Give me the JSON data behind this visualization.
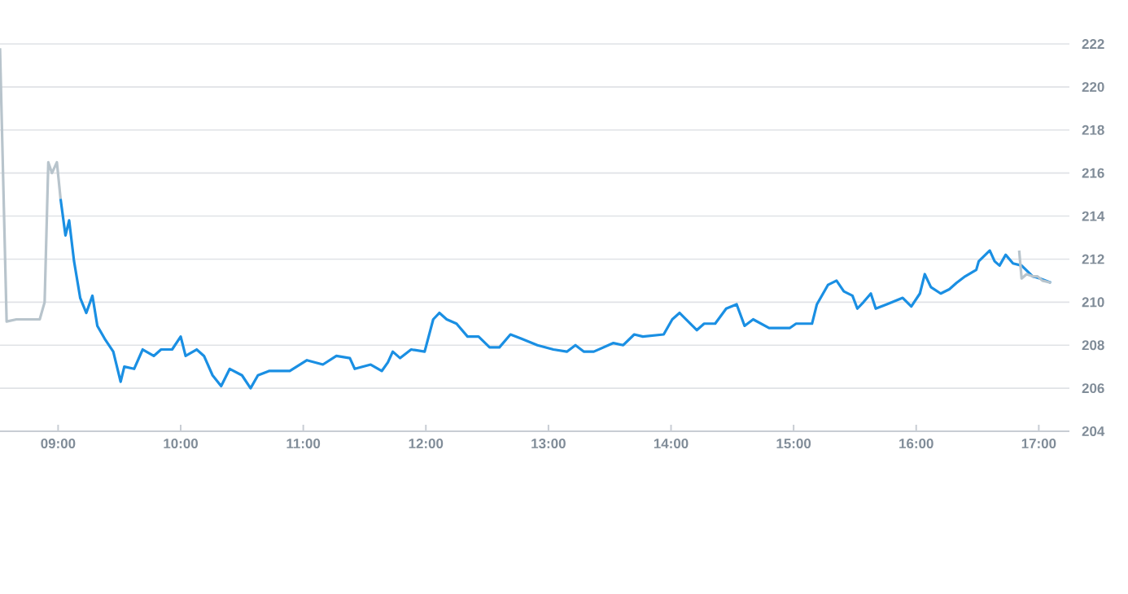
{
  "chart_data": {
    "type": "line",
    "series": [
      {
        "color": "#b8c4cc",
        "x": [
          8.526,
          8.58,
          8.66,
          8.85,
          8.89,
          8.92,
          8.95,
          8.99,
          9.02
        ],
        "values": [
          221.8,
          209.1,
          209.2,
          209.2,
          210.0,
          216.5,
          216.0,
          216.5,
          214.8
        ]
      },
      {
        "color": "#1a8fe3",
        "x": [
          9.02,
          9.06,
          9.09,
          9.13,
          9.18,
          9.23,
          9.28,
          9.32,
          9.38,
          9.45,
          9.51,
          9.54,
          9.62,
          9.69,
          9.78,
          9.84,
          9.93,
          10.0,
          10.04,
          10.13,
          10.19,
          10.26,
          10.33,
          10.4,
          10.5,
          10.57,
          10.63,
          10.72,
          10.89,
          11.03,
          11.16,
          11.27,
          11.38,
          11.42,
          11.55,
          11.64,
          11.69,
          11.73,
          11.79,
          11.88,
          11.99,
          12.06,
          12.11,
          12.17,
          12.25,
          12.34,
          12.43,
          12.52,
          12.6,
          12.69,
          12.78,
          12.91,
          13.04,
          13.15,
          13.22,
          13.29,
          13.37,
          13.53,
          13.61,
          13.7,
          13.77,
          13.94,
          14.01,
          14.07,
          14.21,
          14.27,
          14.36,
          14.45,
          14.535,
          14.6,
          14.67,
          14.8,
          14.97,
          15.02,
          15.15,
          15.19,
          15.28,
          15.35,
          15.41,
          15.48,
          15.52,
          15.57,
          15.63,
          15.67,
          15.76,
          15.89,
          15.96,
          16.03,
          16.07,
          16.12,
          16.2,
          16.27,
          16.33,
          16.4,
          16.49,
          16.51,
          16.6,
          16.64,
          16.68,
          16.73,
          16.79,
          16.86,
          16.95,
          17.01,
          17.1
        ],
        "values": [
          214.8,
          213.1,
          213.8,
          211.9,
          210.2,
          209.5,
          210.3,
          208.9,
          208.3,
          207.7,
          206.3,
          207.0,
          206.9,
          207.8,
          207.5,
          207.8,
          207.8,
          208.4,
          207.5,
          207.8,
          207.5,
          206.6,
          206.1,
          206.9,
          206.6,
          206.0,
          206.6,
          206.8,
          206.8,
          207.3,
          207.1,
          207.5,
          207.4,
          206.9,
          207.1,
          206.8,
          207.2,
          207.7,
          207.4,
          207.8,
          207.7,
          209.2,
          209.5,
          209.2,
          209.0,
          208.4,
          208.4,
          207.9,
          207.9,
          208.5,
          208.3,
          208.0,
          207.8,
          207.7,
          208.0,
          207.7,
          207.7,
          208.1,
          208.0,
          208.5,
          208.4,
          208.5,
          209.2,
          209.5,
          208.7,
          209.0,
          209.0,
          209.7,
          209.9,
          208.9,
          209.2,
          208.8,
          208.8,
          209.0,
          209.0,
          209.9,
          210.8,
          211.0,
          210.5,
          210.3,
          209.7,
          210.0,
          210.4,
          209.7,
          209.9,
          210.2,
          209.8,
          210.4,
          211.3,
          210.7,
          210.4,
          210.6,
          210.9,
          211.2,
          211.5,
          211.9,
          212.4,
          211.9,
          211.7,
          212.2,
          211.8,
          211.7,
          211.2,
          211.1,
          210.9
        ]
      },
      {
        "color": "#b8c4cc",
        "x": [
          16.84,
          16.86,
          16.9,
          16.95,
          16.99,
          17.03,
          17.1
        ],
        "values": [
          212.4,
          211.1,
          211.3,
          211.2,
          211.2,
          211.0,
          210.9
        ]
      }
    ],
    "xlim": [
      8.526,
      17.25
    ],
    "xticks": [
      {
        "value": 9,
        "label": "09:00"
      },
      {
        "value": 10,
        "label": "10:00"
      },
      {
        "value": 11,
        "label": "11:00"
      },
      {
        "value": 12,
        "label": "12:00"
      },
      {
        "value": 13,
        "label": "13:00"
      },
      {
        "value": 14,
        "label": "14:00"
      },
      {
        "value": 15,
        "label": "15:00"
      },
      {
        "value": 16,
        "label": "16:00"
      },
      {
        "value": 17,
        "label": "17:00"
      }
    ],
    "ylim": [
      204,
      222
    ],
    "yticks": [
      204,
      206,
      208,
      210,
      212,
      214,
      216,
      218,
      220,
      222
    ],
    "grid": "y",
    "marker": "none",
    "line_style": "solid"
  }
}
